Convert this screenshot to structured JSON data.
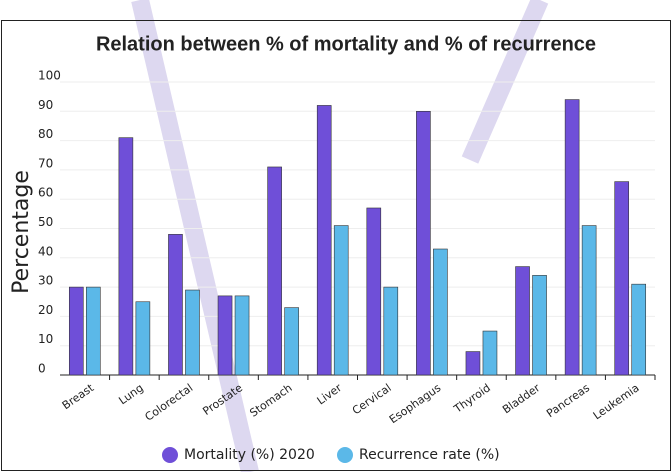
{
  "chart_data": {
    "type": "bar",
    "title": "Relation between % of mortality and % of recurrence",
    "ylabel": "Percentage",
    "categories": [
      "Breast",
      "Lung",
      "Colorectal",
      "Prostate",
      "Stomach",
      "Liver",
      "Cervical",
      "Esophagus",
      "Thyroid",
      "Bladder",
      "Pancreas",
      "Leukemia"
    ],
    "series": [
      {
        "name": "Mortality (%) 2020",
        "color": "#6f4fd8",
        "values": [
          30,
          81,
          48,
          27,
          71,
          92,
          57,
          90,
          8,
          37,
          94,
          66
        ]
      },
      {
        "name": "Recurrence rate (%)",
        "color": "#5bb8e8",
        "values": [
          30,
          25,
          29,
          27,
          23,
          51,
          30,
          43,
          15,
          34,
          51,
          31
        ]
      }
    ],
    "ylim": [
      0,
      100
    ],
    "yticks": [
      0,
      10,
      20,
      30,
      40,
      50,
      60,
      70,
      80,
      90,
      100
    ],
    "grid": true,
    "legend": "bottom"
  }
}
